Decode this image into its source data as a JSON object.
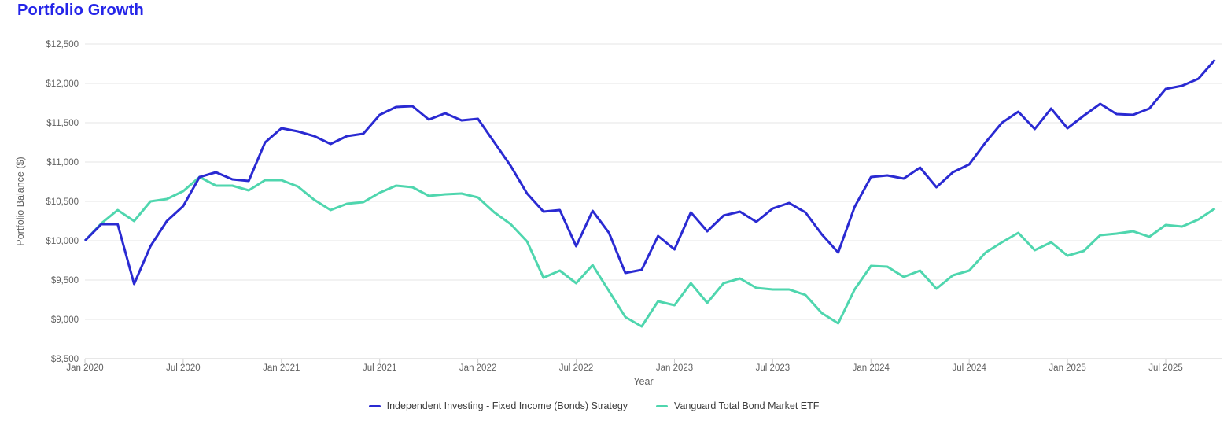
{
  "title": "Portfolio Growth",
  "colors": {
    "title": "#2424e8",
    "series_blue": "#2a2ad2",
    "series_teal": "#4fd6ae",
    "gridline": "#e6e6e6",
    "axis_line": "#cfcfcf",
    "tick_text": "#616161",
    "legend_text": "#3d3d3d"
  },
  "chart_data": {
    "type": "line",
    "title": "Portfolio Growth",
    "xlabel": "Year",
    "ylabel": "Portfolio Balance ($)",
    "ylim": [
      8500,
      12500
    ],
    "y_tick_step": 500,
    "grid": true,
    "legend_position": "bottom",
    "y_ticks": [
      {
        "value": 8500,
        "label": "$8,500"
      },
      {
        "value": 9000,
        "label": "$9,000"
      },
      {
        "value": 9500,
        "label": "$9,500"
      },
      {
        "value": 10000,
        "label": "$10,000"
      },
      {
        "value": 10500,
        "label": "$10,500"
      },
      {
        "value": 11000,
        "label": "$11,000"
      },
      {
        "value": 11500,
        "label": "$11,500"
      },
      {
        "value": 12000,
        "label": "$12,000"
      },
      {
        "value": 12500,
        "label": "$12,500"
      }
    ],
    "x_ticks": [
      {
        "month_index": 0,
        "label": "Jan 2020"
      },
      {
        "month_index": 6,
        "label": "Jul 2020"
      },
      {
        "month_index": 12,
        "label": "Jan 2021"
      },
      {
        "month_index": 18,
        "label": "Jul 2021"
      },
      {
        "month_index": 24,
        "label": "Jan 2022"
      },
      {
        "month_index": 30,
        "label": "Jul 2022"
      },
      {
        "month_index": 36,
        "label": "Jan 2023"
      },
      {
        "month_index": 42,
        "label": "Jul 2023"
      },
      {
        "month_index": 48,
        "label": "Jan 2024"
      },
      {
        "month_index": 54,
        "label": "Jul 2024"
      },
      {
        "month_index": 60,
        "label": "Jan 2025"
      },
      {
        "month_index": 66,
        "label": "Jul 2025"
      }
    ],
    "x": [
      "Jan 2020",
      "Feb 2020",
      "Mar 2020",
      "Apr 2020",
      "May 2020",
      "Jun 2020",
      "Jul 2020",
      "Aug 2020",
      "Sep 2020",
      "Oct 2020",
      "Nov 2020",
      "Dec 2020",
      "Jan 2021",
      "Feb 2021",
      "Mar 2021",
      "Apr 2021",
      "May 2021",
      "Jun 2021",
      "Jul 2021",
      "Aug 2021",
      "Sep 2021",
      "Oct 2021",
      "Nov 2021",
      "Dec 2021",
      "Jan 2022",
      "Feb 2022",
      "Mar 2022",
      "Apr 2022",
      "May 2022",
      "Jun 2022",
      "Jul 2022",
      "Aug 2022",
      "Sep 2022",
      "Oct 2022",
      "Nov 2022",
      "Dec 2022",
      "Jan 2023",
      "Feb 2023",
      "Mar 2023",
      "Apr 2023",
      "May 2023",
      "Jun 2023",
      "Jul 2023",
      "Aug 2023",
      "Sep 2023",
      "Oct 2023",
      "Nov 2023",
      "Dec 2023",
      "Jan 2024",
      "Feb 2024",
      "Mar 2024",
      "Apr 2024",
      "May 2024",
      "Jun 2024",
      "Jul 2024",
      "Aug 2024",
      "Sep 2024",
      "Oct 2024",
      "Nov 2024",
      "Dec 2024",
      "Jan 2025",
      "Feb 2025",
      "Mar 2025",
      "Apr 2025",
      "May 2025",
      "Jun 2025",
      "Jul 2025",
      "Aug 2025",
      "Sep 2025",
      "Oct 2025"
    ],
    "series": [
      {
        "id": "independent-investing",
        "name": "Independent Investing - Fixed Income (Bonds) Strategy",
        "color": "#2a2ad2",
        "values": [
          10000,
          10210,
          10210,
          9450,
          9930,
          10250,
          10440,
          10810,
          10870,
          10780,
          10760,
          11250,
          11430,
          11390,
          11330,
          11230,
          11330,
          11360,
          11600,
          11700,
          11710,
          11540,
          11620,
          11530,
          11550,
          11250,
          10950,
          10600,
          10370,
          10390,
          9930,
          10380,
          10100,
          9590,
          9630,
          10060,
          9890,
          10360,
          10120,
          10320,
          10370,
          10240,
          10410,
          10480,
          10360,
          10080,
          9850,
          10430,
          10810,
          10830,
          10790,
          10930,
          10680,
          10870,
          10970,
          11250,
          11500,
          11640,
          11420,
          11680,
          11430,
          11590,
          11740,
          11610,
          11600,
          11680,
          11930,
          11970,
          12060,
          12300
        ]
      },
      {
        "id": "vanguard-etf",
        "name": "Vanguard Total Bond Market ETF",
        "color": "#4fd6ae",
        "values": [
          10000,
          10220,
          10390,
          10250,
          10500,
          10530,
          10630,
          10810,
          10700,
          10700,
          10640,
          10770,
          10770,
          10690,
          10520,
          10390,
          10470,
          10490,
          10610,
          10700,
          10680,
          10570,
          10590,
          10600,
          10550,
          10360,
          10210,
          9990,
          9530,
          9620,
          9460,
          9690,
          9360,
          9030,
          8910,
          9230,
          9180,
          9460,
          9210,
          9460,
          9520,
          9400,
          9380,
          9380,
          9310,
          9080,
          8950,
          9380,
          9680,
          9670,
          9540,
          9620,
          9390,
          9560,
          9620,
          9850,
          9980,
          10100,
          9880,
          9980,
          9810,
          9870,
          10070,
          10090,
          10120,
          10050,
          10200,
          10180,
          10270,
          10410
        ]
      }
    ]
  }
}
